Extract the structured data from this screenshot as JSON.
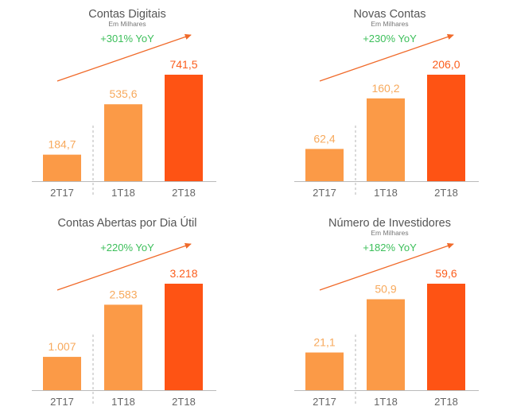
{
  "colors": {
    "bar_light": "#fb9a47",
    "bar_dark": "#fe5314",
    "value_light": "#f7a95c",
    "value_dark": "#fb5d1c",
    "yoy_text": "#3cbf5a",
    "trend_arrow": "#f06a2a",
    "axis": "#bbbbbb",
    "title_text": "#555555"
  },
  "chart_data": [
    {
      "type": "bar",
      "title": "Contas Digitais",
      "subtitle": "Em Milhares",
      "annotation": "+301% YoY",
      "categories": [
        "2T17",
        "1T18",
        "2T18"
      ],
      "values": [
        184.7,
        535.6,
        741.5
      ],
      "value_labels": [
        "184,7",
        "535,6",
        "741,5"
      ],
      "ylim": [
        0,
        741.5
      ]
    },
    {
      "type": "bar",
      "title": "Novas Contas",
      "subtitle": "Em Milhares",
      "annotation": "+230% YoY",
      "categories": [
        "2T17",
        "1T18",
        "2T18"
      ],
      "values": [
        62.4,
        160.2,
        206.0
      ],
      "value_labels": [
        "62,4",
        "160,2",
        "206,0"
      ],
      "ylim": [
        0,
        206.0
      ]
    },
    {
      "type": "bar",
      "title": "Contas Abertas por Dia Útil",
      "subtitle": "",
      "annotation": "+220% YoY",
      "categories": [
        "2T17",
        "1T18",
        "2T18"
      ],
      "values": [
        1007,
        2583,
        3218
      ],
      "value_labels": [
        "1.007",
        "2.583",
        "3.218"
      ],
      "ylim": [
        0,
        3218
      ]
    },
    {
      "type": "bar",
      "title": "Número de Investidores",
      "subtitle": "Em Milhares",
      "annotation": "+182% YoY",
      "categories": [
        "2T17",
        "1T18",
        "2T18"
      ],
      "values": [
        21.1,
        50.9,
        59.6
      ],
      "value_labels": [
        "21,1",
        "50,9",
        "59,6"
      ],
      "ylim": [
        0,
        59.6
      ]
    }
  ]
}
